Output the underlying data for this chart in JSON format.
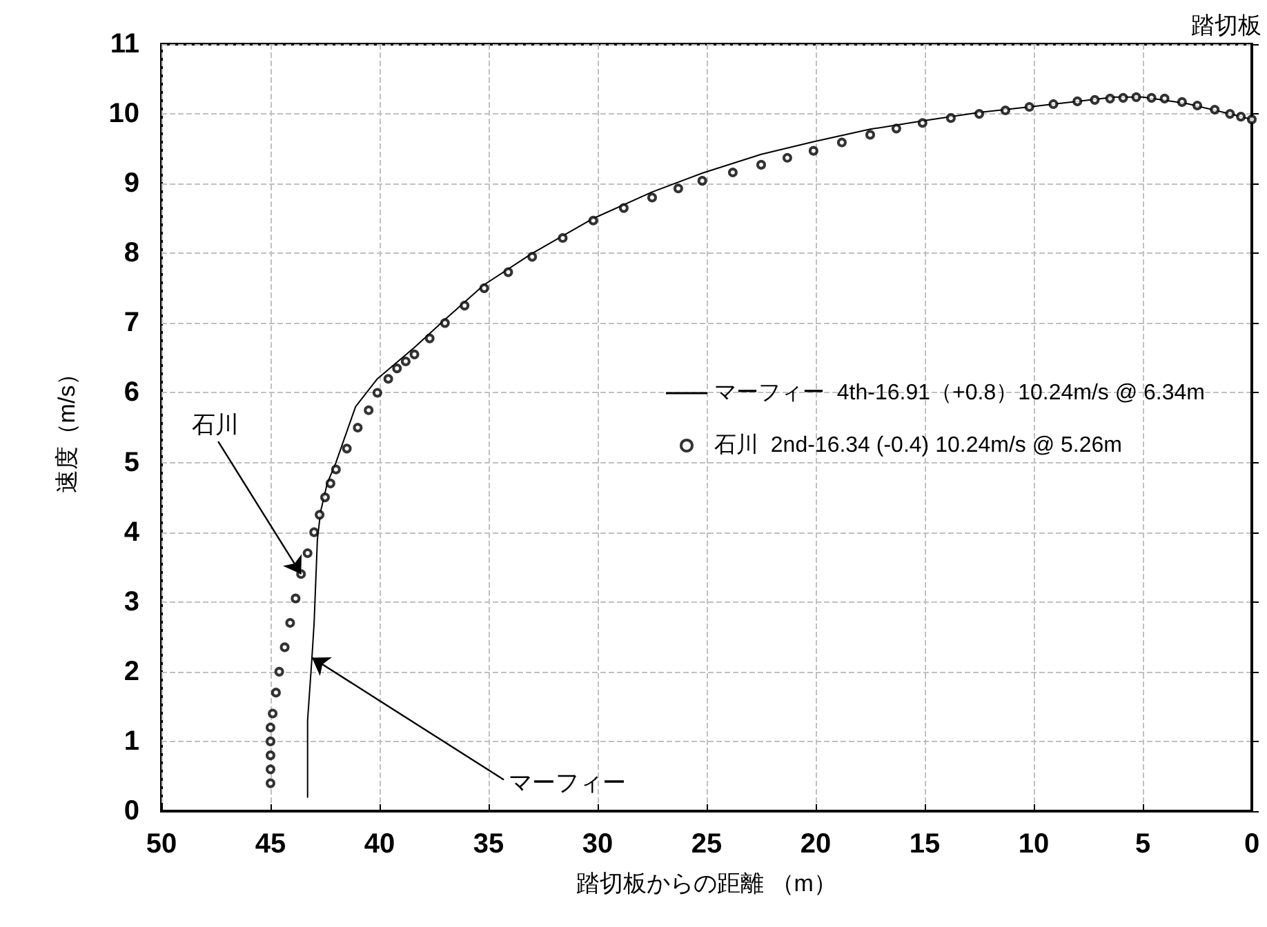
{
  "chart_data": {
    "type": "line",
    "xlabel": "踏切板からの距離 （m）",
    "ylabel": "速度（m/s）",
    "xlim": [
      50,
      0
    ],
    "xticks": [
      50,
      45,
      40,
      35,
      30,
      25,
      20,
      15,
      10,
      5,
      0
    ],
    "ylim": [
      0,
      11
    ],
    "yticks": [
      0,
      1,
      2,
      3,
      4,
      5,
      6,
      7,
      8,
      9,
      10,
      11
    ],
    "grid": true,
    "legend": "right",
    "line_style": "solid",
    "annotations": [
      {
        "text": "石川",
        "x": 43.6,
        "y": 3.4
      },
      {
        "text": "マーフィー",
        "x": 43.1,
        "y": 2.2
      },
      "踏切板"
    ],
    "series": [
      {
        "name": "マーフィー  4th-16.91（+0.8）10.24m/s @ 6.34m",
        "marker": "none",
        "color": "#000000",
        "x": [
          43.3,
          43.3,
          43.1,
          43.0,
          42.85,
          42.7,
          42.4,
          42.0,
          41.1,
          40.1,
          38.4,
          37,
          35.2,
          33,
          30.2,
          27.5,
          25.2,
          22.5,
          20.1,
          17.5,
          15.1,
          12.5,
          10.2,
          8,
          6.3,
          5,
          3,
          1,
          0
        ],
        "values": [
          0.2,
          1.3,
          2.2,
          2.7,
          3.9,
          4.3,
          4.7,
          5.0,
          5.8,
          6.2,
          6.65,
          7.05,
          7.55,
          8.0,
          8.5,
          8.88,
          9.15,
          9.42,
          9.6,
          9.78,
          9.9,
          10.02,
          10.1,
          10.18,
          10.24,
          10.24,
          10.15,
          10.0,
          9.92
        ]
      },
      {
        "name": "石川  2nd-16.34 (-0.4) 10.24m/s @ 5.26m",
        "type": "scatter",
        "marker": "circle",
        "color": "#000000",
        "x": [
          45.0,
          45.0,
          45.0,
          45.0,
          45.0,
          44.9,
          44.75,
          44.6,
          44.35,
          44.1,
          43.85,
          43.6,
          43.3,
          43.0,
          42.75,
          42.5,
          42.25,
          42.0,
          41.5,
          41.0,
          40.5,
          40.1,
          39.6,
          39.2,
          38.8,
          38.4,
          37.7,
          37,
          36.1,
          35.2,
          34.1,
          33,
          31.6,
          30.2,
          28.8,
          27.5,
          26.3,
          25.2,
          23.8,
          22.5,
          21.3,
          20.1,
          18.8,
          17.5,
          16.3,
          15.1,
          13.8,
          12.5,
          11.3,
          10.2,
          9.1,
          8,
          7.2,
          6.5,
          5.9,
          5.3,
          4.6,
          4,
          3.2,
          2.5,
          1.7,
          1,
          0.5,
          0
        ],
        "values": [
          0.4,
          0.6,
          0.8,
          1.0,
          1.2,
          1.4,
          1.7,
          2.0,
          2.35,
          2.7,
          3.05,
          3.4,
          3.7,
          4.0,
          4.25,
          4.5,
          4.7,
          4.9,
          5.2,
          5.5,
          5.75,
          6.0,
          6.2,
          6.35,
          6.45,
          6.55,
          6.78,
          7.0,
          7.25,
          7.5,
          7.73,
          7.95,
          8.22,
          8.47,
          8.65,
          8.8,
          8.93,
          9.04,
          9.16,
          9.27,
          9.37,
          9.47,
          9.59,
          9.7,
          9.79,
          9.87,
          9.94,
          10.0,
          10.05,
          10.1,
          10.14,
          10.18,
          10.2,
          10.22,
          10.23,
          10.24,
          10.23,
          10.22,
          10.17,
          10.12,
          10.06,
          10.0,
          9.96,
          9.92
        ]
      }
    ]
  }
}
